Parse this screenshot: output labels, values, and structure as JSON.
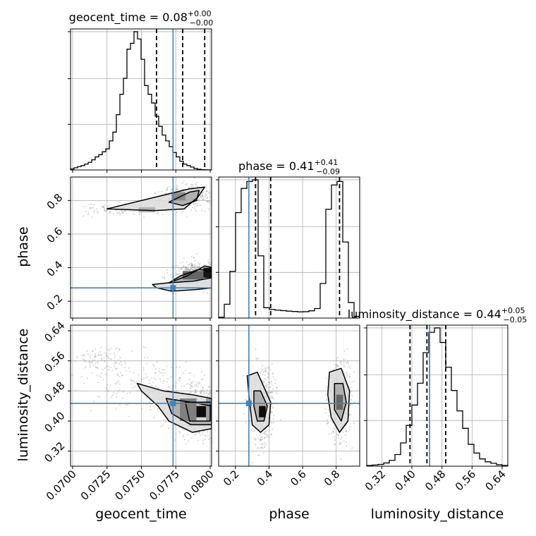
{
  "chart_data": {
    "type": "corner",
    "parameters": [
      {
        "name": "geocent_time",
        "axis_label": "geocent_time",
        "range": [
          0.06985,
          0.0801
        ],
        "ticks": [
          0.07,
          0.0725,
          0.075,
          0.0775,
          0.08
        ],
        "tick_labels": [
          "0.0700",
          "0.0725",
          "0.0750",
          "0.0775",
          "0.0800"
        ],
        "truth": 0.0773,
        "quantiles": [
          0.0761,
          0.078,
          0.0796
        ],
        "title": {
          "base": "geocent_time = 0.08",
          "plus": "+0.00",
          "minus": "−0.00"
        },
        "histogram": [
          0.7,
          1.5,
          2.3,
          3.0,
          4.0,
          5.2,
          7.0,
          9.0,
          10.5,
          12.5,
          14.5,
          20.0,
          26.0,
          38.0,
          52.0,
          63.0,
          83.0,
          87.0,
          95.0,
          90.0,
          76.0,
          58.0,
          52.0,
          46.0,
          37.0,
          30.0,
          24.0,
          20.0,
          16.0,
          12.0,
          9.0,
          6.0,
          4.0,
          3.0,
          2.0,
          1.0,
          0.5,
          0.2,
          0.1,
          0.05
        ]
      },
      {
        "name": "phase",
        "axis_label": "phase",
        "range": [
          0.1,
          0.94
        ],
        "ticks": [
          0.2,
          0.4,
          0.6,
          0.8
        ],
        "tick_labels": [
          "0.2",
          "0.4",
          "0.6",
          "0.8"
        ],
        "truth": 0.28,
        "quantiles": [
          0.32,
          0.41,
          0.82
        ],
        "title": {
          "base": "phase = 0.41",
          "plus": "+0.41",
          "minus": "−0.09"
        },
        "histogram": [
          0.5,
          8.0,
          27.0,
          61.0,
          75.0,
          79.0,
          80.0,
          36.0,
          6.0,
          5.0,
          4.6,
          4.3,
          4.0,
          3.8,
          3.6,
          3.7,
          4.2,
          5.5,
          20.0,
          63.0,
          77.0,
          79.0,
          44.0,
          9.0,
          1.0
        ]
      },
      {
        "name": "luminosity_distance",
        "axis_label": "luminosity_distance",
        "range": [
          0.28,
          0.655
        ],
        "ticks": [
          0.32,
          0.4,
          0.48,
          0.56,
          0.64
        ],
        "tick_labels": [
          "0.32",
          "0.40",
          "0.48",
          "0.56",
          "0.64"
        ],
        "truth": 0.447,
        "quantiles": [
          0.395,
          0.44,
          0.49
        ],
        "title": {
          "base": "luminosity_distance = 0.44",
          "plus": "+0.05",
          "minus": "−0.05"
        },
        "histogram": [
          0.5,
          0.8,
          1.2,
          2.2,
          4.0,
          8.0,
          16.0,
          28.0,
          42.0,
          57.0,
          78.0,
          92.0,
          95.0,
          85.0,
          68.0,
          52.0,
          38.0,
          26.0,
          15.0,
          9.0,
          5.0,
          3.0,
          2.0,
          1.0,
          0.5
        ]
      }
    ],
    "axis_labels": {
      "x": [
        "geocent_time",
        "phase",
        "luminosity_distance"
      ],
      "y": [
        "phase",
        "luminosity_distance"
      ]
    },
    "grid": true,
    "colors": {
      "truth": "#4682b4",
      "histogram": "#000000",
      "quantile": "#000000",
      "contour": "#000000",
      "scatter": "#777777",
      "grid": "#b0b0b0"
    },
    "pairs": {
      "geocent_time_vs_phase": {
        "x_param": "geocent_time",
        "y_param": "phase",
        "modes": [
          {
            "mean": [
              0.079,
              0.365
            ],
            "std": [
              0.0009,
              0.038
            ],
            "weight": 0.52
          },
          {
            "mean": [
              0.0783,
              0.82
            ],
            "std": [
              0.0009,
              0.035
            ],
            "weight": 0.34
          },
          {
            "mean": [
              0.0742,
              0.75
            ],
            "std": [
              0.0016,
              0.018
            ],
            "weight": 0.14
          }
        ],
        "contours": [
          [
            [
              0.0761,
              0.28
            ],
            [
              0.0772,
              0.26
            ],
            [
              0.079,
              0.27
            ],
            [
              0.0802,
              0.28
            ],
            [
              0.0802,
              0.4
            ],
            [
              0.0796,
              0.41
            ],
            [
              0.0783,
              0.35
            ],
            [
              0.077,
              0.31
            ],
            [
              0.0758,
              0.3
            ]
          ],
          [
            [
              0.077,
              0.31
            ],
            [
              0.0788,
              0.32
            ],
            [
              0.0801,
              0.34
            ],
            [
              0.0801,
              0.38
            ],
            [
              0.0792,
              0.39
            ],
            [
              0.0778,
              0.35
            ]
          ],
          [
            [
              0.0725,
              0.75
            ],
            [
              0.076,
              0.82
            ],
            [
              0.0785,
              0.87
            ],
            [
              0.0796,
              0.88
            ],
            [
              0.0791,
              0.82
            ],
            [
              0.0781,
              0.75
            ],
            [
              0.076,
              0.74
            ]
          ],
          [
            [
              0.077,
              0.79
            ],
            [
              0.0785,
              0.85
            ],
            [
              0.0792,
              0.86
            ],
            [
              0.079,
              0.8
            ],
            [
              0.078,
              0.77
            ]
          ]
        ],
        "dense_cells": [
          {
            "x": [
              0.0795,
              0.0801
            ],
            "y": [
              0.34,
              0.4
            ],
            "level": 0.92
          },
          {
            "x": [
              0.078,
              0.0795
            ],
            "y": [
              0.33,
              0.38
            ],
            "level": 0.6
          },
          {
            "x": [
              0.0772,
              0.0782
            ],
            "y": [
              0.8,
              0.85
            ],
            "level": 0.45
          },
          {
            "x": [
              0.0748,
              0.076
            ],
            "y": [
              0.73,
              0.76
            ],
            "level": 0.3
          }
        ]
      },
      "geocent_time_vs_luminosity_distance": {
        "x_param": "geocent_time",
        "y_param": "luminosity_distance",
        "modes": [
          {
            "mean": [
              0.079,
              0.43
            ],
            "std": [
              0.0011,
              0.035
            ],
            "weight": 0.7
          },
          {
            "mean": [
              0.0755,
              0.5
            ],
            "std": [
              0.0022,
              0.035
            ],
            "weight": 0.2
          },
          {
            "mean": [
              0.072,
              0.56
            ],
            "std": [
              0.0012,
              0.02
            ],
            "weight": 0.1
          }
        ],
        "contours": [
          [
            [
              0.0747,
              0.5
            ],
            [
              0.0766,
              0.48
            ],
            [
              0.0787,
              0.47
            ],
            [
              0.0801,
              0.46
            ],
            [
              0.0801,
              0.38
            ],
            [
              0.0787,
              0.37
            ],
            [
              0.077,
              0.4
            ],
            [
              0.0762,
              0.44
            ],
            [
              0.075,
              0.48
            ]
          ],
          [
            [
              0.0768,
              0.46
            ],
            [
              0.0786,
              0.45
            ],
            [
              0.0801,
              0.44
            ],
            [
              0.0801,
              0.39
            ],
            [
              0.0786,
              0.39
            ],
            [
              0.0772,
              0.42
            ]
          ],
          [
            [
              0.0782,
              0.45
            ],
            [
              0.08,
              0.45
            ],
            [
              0.08,
              0.4
            ],
            [
              0.0785,
              0.4
            ]
          ]
        ],
        "dense_cells": [
          {
            "x": [
              0.079,
              0.0797
            ],
            "y": [
              0.41,
              0.44
            ],
            "level": 0.95
          },
          {
            "x": [
              0.0778,
              0.079
            ],
            "y": [
              0.4,
              0.46
            ],
            "level": 0.5
          },
          {
            "x": [
              0.0797,
              0.0801
            ],
            "y": [
              0.4,
              0.46
            ],
            "level": 0.4
          }
        ]
      },
      "phase_vs_luminosity_distance": {
        "x_param": "phase",
        "y_param": "luminosity_distance",
        "modes": [
          {
            "mean": [
              0.36,
              0.44
            ],
            "std": [
              0.035,
              0.05
            ],
            "weight": 0.5
          },
          {
            "mean": [
              0.82,
              0.46
            ],
            "std": [
              0.035,
              0.05
            ],
            "weight": 0.5
          }
        ],
        "contours": [
          [
            [
              0.27,
              0.52
            ],
            [
              0.33,
              0.53
            ],
            [
              0.41,
              0.45
            ],
            [
              0.4,
              0.39
            ],
            [
              0.35,
              0.37
            ],
            [
              0.3,
              0.39
            ],
            [
              0.28,
              0.47
            ]
          ],
          [
            [
              0.31,
              0.48
            ],
            [
              0.35,
              0.48
            ],
            [
              0.39,
              0.44
            ],
            [
              0.37,
              0.4
            ],
            [
              0.33,
              0.4
            ],
            [
              0.31,
              0.44
            ]
          ],
          [
            [
              0.76,
              0.53
            ],
            [
              0.83,
              0.54
            ],
            [
              0.88,
              0.48
            ],
            [
              0.87,
              0.4
            ],
            [
              0.82,
              0.37
            ],
            [
              0.77,
              0.41
            ],
            [
              0.75,
              0.47
            ]
          ],
          [
            [
              0.79,
              0.5
            ],
            [
              0.84,
              0.5
            ],
            [
              0.86,
              0.45
            ],
            [
              0.83,
              0.4
            ],
            [
              0.79,
              0.43
            ]
          ]
        ],
        "dense_cells": [
          {
            "x": [
              0.34,
              0.38
            ],
            "y": [
              0.41,
              0.44
            ],
            "level": 0.95
          },
          {
            "x": [
              0.8,
              0.84
            ],
            "y": [
              0.43,
              0.47
            ],
            "level": 0.6
          }
        ]
      }
    }
  }
}
